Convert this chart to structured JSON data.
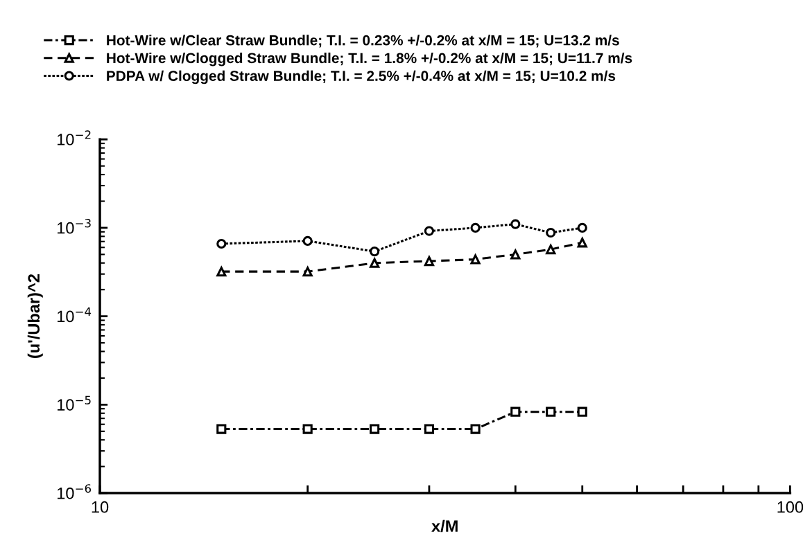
{
  "chart_data": {
    "type": "line",
    "xlabel": "x/M",
    "ylabel": "(u'/Ubar)^2",
    "log": "xy",
    "xlim": [
      10,
      100
    ],
    "xticks": [
      10,
      {
        "value": 20,
        "label": null
      },
      {
        "value": 30,
        "label": null
      },
      {
        "value": 40,
        "label": null
      },
      {
        "value": 50,
        "label": null
      },
      {
        "value": 60,
        "label": null
      },
      {
        "value": 70,
        "label": null
      },
      {
        "value": 80,
        "label": null
      },
      {
        "value": 90,
        "label": null
      },
      100
    ],
    "ylim": [
      1e-06,
      0.01
    ],
    "yticks": [
      {
        "value": 1e-06,
        "label": "10$^{−6}$"
      },
      {
        "value": 1e-05,
        "label": "10$^{−5}$"
      },
      {
        "value": 0.0001,
        "label": "10$^{−4}$"
      },
      {
        "value": 0.001,
        "label": "10$^{−3}$"
      },
      {
        "value": 0.01,
        "label": "10$^{−2}$"
      }
    ],
    "x": [
      15,
      20,
      25,
      30,
      35,
      40,
      45,
      50
    ],
    "grid": false,
    "legend": "top",
    "series": [
      {
        "name": "Hot-Wire w/Clear Straw Bundle; T.I. = 0.23% +/-0.2% at x/M = 15; U=13.2 m/s",
        "color": "#000000",
        "marker": "square",
        "line_style": "dashdot",
        "values": [
          5.3e-06,
          5.3e-06,
          5.3e-06,
          5.3e-06,
          5.3e-06,
          8.3e-06,
          8.3e-06,
          8.3e-06
        ]
      },
      {
        "name": "Hot-Wire w/Clogged Straw Bundle; T.I. = 1.8% +/-0.2% at x/M = 15; U=11.7 m/s",
        "color": "#000000",
        "marker": "triangle",
        "line_style": "dashed",
        "values": [
          0.00032,
          0.00032,
          0.0004,
          0.00042,
          0.00044,
          0.0005,
          0.00057,
          0.00068
        ]
      },
      {
        "name": "PDPA w/ Clogged Straw Bundle; T.I. = 2.5% +/-0.4% at x/M = 15; U=10.2 m/s",
        "color": "#000000",
        "marker": "circle",
        "line_style": "dotted",
        "values": [
          0.00066,
          0.00071,
          0.00054,
          0.00092,
          0.001,
          0.0011,
          0.00088,
          0.001
        ]
      }
    ]
  }
}
